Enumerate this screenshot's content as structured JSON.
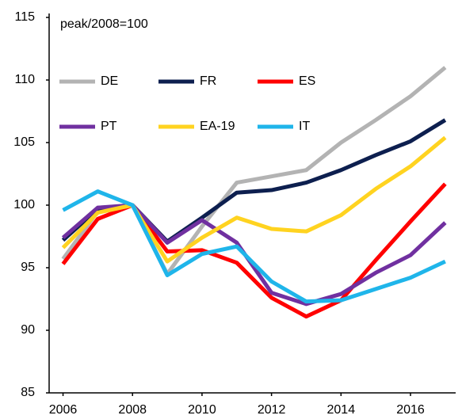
{
  "chart_data": {
    "type": "line",
    "subtitle": "peak/2008=100",
    "x": [
      2006,
      2007,
      2008,
      2009,
      2010,
      2011,
      2012,
      2013,
      2014,
      2015,
      2016,
      2017
    ],
    "xlim": [
      2005.6,
      2017.3
    ],
    "xticks": [
      2006,
      2008,
      2010,
      2012,
      2014,
      2016
    ],
    "ylim": [
      85,
      115
    ],
    "yticks": [
      85,
      90,
      95,
      100,
      105,
      110,
      115
    ],
    "grid": false,
    "series": [
      {
        "name": "DE",
        "color": "#b3b3b3",
        "values": [
          95.7,
          99.5,
          100,
          94.5,
          98.3,
          101.8,
          102.3,
          102.8,
          105,
          106.8,
          108.7,
          111
        ]
      },
      {
        "name": "FR",
        "color": "#0d1f4f",
        "values": [
          97.2,
          99.7,
          100,
          97.1,
          99,
          101,
          101.2,
          101.8,
          102.8,
          104,
          105.1,
          106.8
        ]
      },
      {
        "name": "ES",
        "color": "#ff0000",
        "values": [
          95.3,
          98.9,
          100,
          96.3,
          96.4,
          95.4,
          92.6,
          91.1,
          92.4,
          95.6,
          98.7,
          101.7
        ]
      },
      {
        "name": "PT",
        "color": "#7030a0",
        "values": [
          97.4,
          99.8,
          100,
          97,
          98.8,
          97,
          93,
          92.1,
          92.9,
          94.6,
          96,
          98.6
        ]
      },
      {
        "name": "EA-19",
        "color": "#ffd320",
        "values": [
          96.6,
          99.4,
          100,
          95.5,
          97.4,
          99,
          98.1,
          97.9,
          99.2,
          101.3,
          103.1,
          105.4
        ]
      },
      {
        "name": "IT",
        "color": "#1fb5ea",
        "values": [
          99.6,
          101.1,
          100,
          94.4,
          96.1,
          96.7,
          93.9,
          92.3,
          92.4,
          93.3,
          94.2,
          95.5
        ]
      }
    ]
  }
}
